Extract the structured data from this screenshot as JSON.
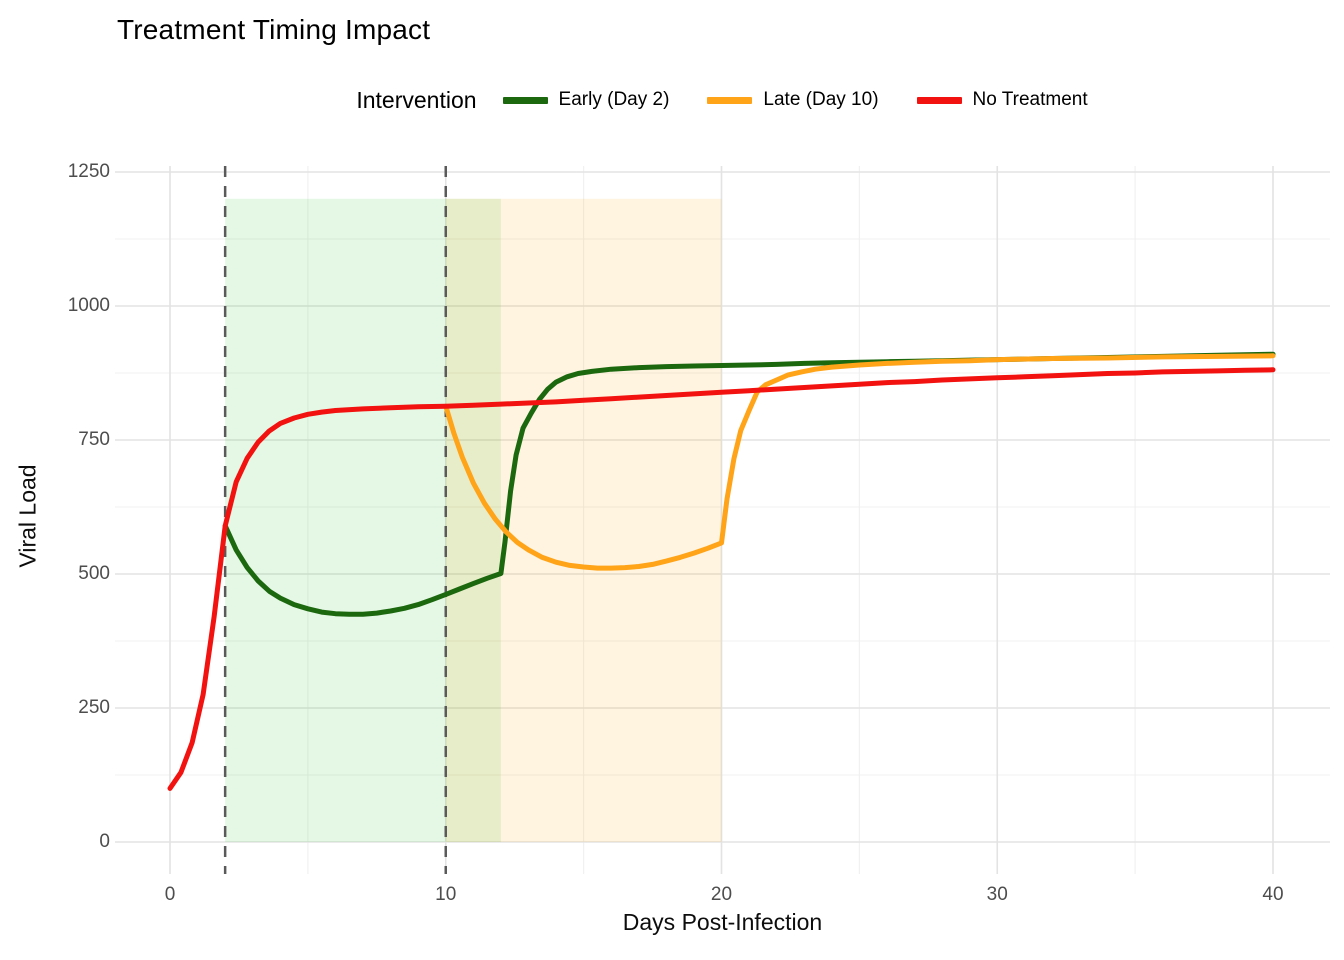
{
  "title": "Treatment Timing Impact",
  "legend": {
    "title": "Intervention",
    "items": [
      {
        "label": "Early (Day 2)",
        "color": "#1c680f"
      },
      {
        "label": "Late (Day 10)",
        "color": "#ffa318"
      },
      {
        "label": "No Treatment",
        "color": "#f2120f"
      }
    ]
  },
  "colors": {
    "background": "#ffffff",
    "title": "#000000",
    "tick_label": "#4d4d4d",
    "axis_title": "#0d0d0d",
    "grid_major": "#e3e3e3",
    "grid_minor": "#f0f0f0",
    "vline": "#5a5a5a",
    "region_early": "rgba(0,190,0,0.10)",
    "region_late": "rgba(255,165,0,0.12)"
  },
  "chart_data": {
    "type": "line",
    "title": "Treatment Timing Impact",
    "xlabel": "Days Post-Infection",
    "ylabel": "Viral Load",
    "xlim": [
      0,
      40
    ],
    "ylim": [
      0,
      1250
    ],
    "x_ticks": [
      0,
      10,
      20,
      30,
      40
    ],
    "x_minor_ticks": [
      5,
      15,
      25,
      35
    ],
    "y_ticks": [
      0,
      250,
      500,
      750,
      1000,
      1250
    ],
    "y_minor_ticks": [
      125,
      375,
      625,
      875,
      1125
    ],
    "grid": true,
    "legend_position": "top",
    "annotations": {
      "vlines": [
        {
          "x": 2,
          "style": "dashed",
          "color": "#5a5a5a",
          "meaning": "early treatment start (day 2)"
        },
        {
          "x": 10,
          "style": "dashed",
          "color": "#5a5a5a",
          "meaning": "late treatment start (day 10)"
        }
      ],
      "regions": [
        {
          "x0": 2,
          "x1": 12,
          "y0": 0,
          "y1": 1200,
          "fill": "rgba(0,190,0,0.10)",
          "meaning": "early treatment window"
        },
        {
          "x0": 10,
          "x1": 20,
          "y0": 0,
          "y1": 1200,
          "fill": "rgba(255,165,0,0.12)",
          "meaning": "late treatment window"
        }
      ]
    },
    "series": [
      {
        "name": "Early (Day 2)",
        "color": "#1c680f",
        "points": [
          [
            2,
            590
          ],
          [
            2.4,
            545
          ],
          [
            2.8,
            512
          ],
          [
            3.2,
            487
          ],
          [
            3.6,
            468
          ],
          [
            4,
            455
          ],
          [
            4.5,
            443
          ],
          [
            5,
            435
          ],
          [
            5.5,
            429
          ],
          [
            6,
            426
          ],
          [
            6.5,
            425
          ],
          [
            7,
            425
          ],
          [
            7.5,
            427
          ],
          [
            8,
            431
          ],
          [
            8.5,
            436
          ],
          [
            9,
            443
          ],
          [
            9.5,
            452
          ],
          [
            10,
            462
          ],
          [
            10.5,
            472
          ],
          [
            11,
            482
          ],
          [
            11.5,
            492
          ],
          [
            12,
            501
          ],
          [
            12.15,
            560
          ],
          [
            12.35,
            655
          ],
          [
            12.55,
            722
          ],
          [
            12.8,
            772
          ],
          [
            13.1,
            800
          ],
          [
            13.4,
            826
          ],
          [
            13.7,
            845
          ],
          [
            14,
            858
          ],
          [
            14.4,
            868
          ],
          [
            14.8,
            874
          ],
          [
            15.3,
            878
          ],
          [
            16,
            882
          ],
          [
            17,
            885
          ],
          [
            18,
            887
          ],
          [
            19,
            888
          ],
          [
            20,
            889
          ],
          [
            21,
            890
          ],
          [
            22,
            891
          ],
          [
            23,
            893
          ],
          [
            24,
            894
          ],
          [
            25,
            895
          ],
          [
            26,
            896
          ],
          [
            27,
            897
          ],
          [
            28,
            898
          ],
          [
            29,
            899
          ],
          [
            30,
            900
          ],
          [
            32,
            902
          ],
          [
            34,
            904
          ],
          [
            36,
            906
          ],
          [
            38,
            908
          ],
          [
            40,
            910
          ]
        ]
      },
      {
        "name": "Late (Day 10)",
        "color": "#ffa318",
        "points": [
          [
            10,
            813
          ],
          [
            10.3,
            762
          ],
          [
            10.6,
            718
          ],
          [
            11,
            670
          ],
          [
            11.4,
            632
          ],
          [
            11.8,
            602
          ],
          [
            12.2,
            578
          ],
          [
            12.6,
            559
          ],
          [
            13,
            545
          ],
          [
            13.5,
            531
          ],
          [
            14,
            522
          ],
          [
            14.5,
            516
          ],
          [
            15,
            513
          ],
          [
            15.5,
            511
          ],
          [
            16,
            511
          ],
          [
            16.5,
            512
          ],
          [
            17,
            514
          ],
          [
            17.5,
            518
          ],
          [
            18,
            524
          ],
          [
            18.5,
            531
          ],
          [
            19,
            539
          ],
          [
            19.5,
            548
          ],
          [
            20,
            558
          ],
          [
            20.2,
            640
          ],
          [
            20.45,
            715
          ],
          [
            20.7,
            768
          ],
          [
            21,
            805
          ],
          [
            21.3,
            840
          ],
          [
            21.6,
            853
          ],
          [
            22,
            862
          ],
          [
            22.4,
            871
          ],
          [
            22.9,
            877
          ],
          [
            23.4,
            882
          ],
          [
            24,
            886
          ],
          [
            25,
            890
          ],
          [
            26,
            893
          ],
          [
            27,
            895
          ],
          [
            28,
            897
          ],
          [
            29,
            898
          ],
          [
            30,
            900
          ],
          [
            32,
            902
          ],
          [
            34,
            903
          ],
          [
            36,
            905
          ],
          [
            38,
            906
          ],
          [
            40,
            907
          ]
        ]
      },
      {
        "name": "No Treatment",
        "color": "#f2120f",
        "points": [
          [
            0,
            100
          ],
          [
            0.4,
            130
          ],
          [
            0.8,
            185
          ],
          [
            1.2,
            275
          ],
          [
            1.6,
            420
          ],
          [
            2,
            590
          ],
          [
            2.4,
            672
          ],
          [
            2.8,
            716
          ],
          [
            3.2,
            746
          ],
          [
            3.6,
            767
          ],
          [
            4,
            781
          ],
          [
            4.5,
            791
          ],
          [
            5,
            798
          ],
          [
            5.5,
            802
          ],
          [
            6,
            805
          ],
          [
            7,
            808
          ],
          [
            8,
            810
          ],
          [
            9,
            812
          ],
          [
            10,
            813
          ],
          [
            11,
            815
          ],
          [
            12,
            817
          ],
          [
            13,
            819
          ],
          [
            14,
            821
          ],
          [
            15,
            824
          ],
          [
            16,
            827
          ],
          [
            17,
            830
          ],
          [
            18,
            833
          ],
          [
            19,
            836
          ],
          [
            20,
            839
          ],
          [
            21,
            842
          ],
          [
            22,
            845
          ],
          [
            23,
            848
          ],
          [
            24,
            851
          ],
          [
            25,
            854
          ],
          [
            26,
            857
          ],
          [
            27,
            859
          ],
          [
            28,
            862
          ],
          [
            29,
            864
          ],
          [
            30,
            866
          ],
          [
            31,
            868
          ],
          [
            32,
            870
          ],
          [
            33,
            872
          ],
          [
            34,
            874
          ],
          [
            35,
            875
          ],
          [
            36,
            877
          ],
          [
            37,
            878
          ],
          [
            38,
            879
          ],
          [
            39,
            880
          ],
          [
            40,
            881
          ]
        ]
      }
    ]
  }
}
